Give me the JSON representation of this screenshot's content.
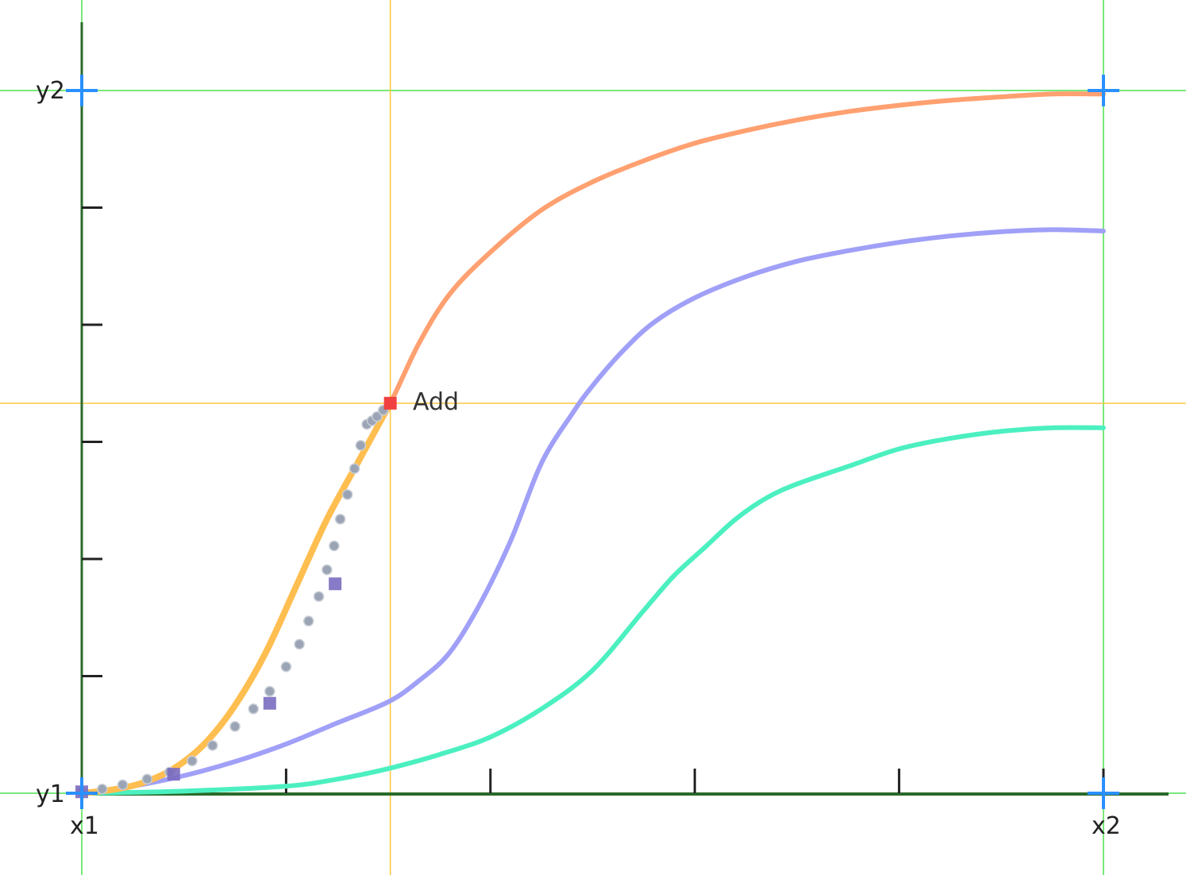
{
  "chart_data": {
    "type": "line",
    "axis_labels": {
      "x_start": "x1",
      "x_end": "x2",
      "y_start": "y1",
      "y_end": "y2"
    },
    "xlim": [
      0,
      1
    ],
    "ylim": [
      0,
      1
    ],
    "x_tick_count": 5,
    "y_tick_count": 6,
    "crosshair": {
      "x": 0.302,
      "y": 0.555
    },
    "add_point": {
      "x": 0.302,
      "y": 0.555,
      "label": "Add"
    },
    "series": [
      {
        "color": "#ffa070",
        "x": [
          0,
          0.03,
          0.06,
          0.09,
          0.12,
          0.15,
          0.18,
          0.21,
          0.24,
          0.27,
          0.302,
          0.33,
          0.36,
          0.4,
          0.45,
          0.5,
          0.55,
          0.6,
          0.65,
          0.7,
          0.75,
          0.8,
          0.85,
          0.9,
          0.95,
          1.0
        ],
        "y": [
          0,
          0.005,
          0.015,
          0.035,
          0.07,
          0.125,
          0.2,
          0.295,
          0.39,
          0.47,
          0.555,
          0.64,
          0.71,
          0.77,
          0.83,
          0.87,
          0.9,
          0.925,
          0.943,
          0.958,
          0.97,
          0.979,
          0.986,
          0.991,
          0.995,
          0.995
        ]
      },
      {
        "color": "#a0a0f8",
        "x": [
          0,
          0.05,
          0.1,
          0.15,
          0.2,
          0.25,
          0.3,
          0.33,
          0.36,
          0.39,
          0.42,
          0.45,
          0.48,
          0.5,
          0.53,
          0.56,
          0.6,
          0.65,
          0.7,
          0.75,
          0.8,
          0.85,
          0.9,
          0.95,
          1.0
        ],
        "y": [
          0,
          0.01,
          0.025,
          0.045,
          0.07,
          0.1,
          0.13,
          0.16,
          0.2,
          0.27,
          0.36,
          0.47,
          0.54,
          0.58,
          0.63,
          0.67,
          0.705,
          0.735,
          0.757,
          0.772,
          0.784,
          0.793,
          0.799,
          0.802,
          0.8
        ]
      },
      {
        "color": "#4cf0c0",
        "x": [
          0,
          0.1,
          0.2,
          0.25,
          0.3,
          0.35,
          0.4,
          0.45,
          0.5,
          0.55,
          0.58,
          0.61,
          0.64,
          0.67,
          0.7,
          0.75,
          0.8,
          0.85,
          0.9,
          0.95,
          1.0
        ],
        "y": [
          0,
          0.003,
          0.01,
          0.02,
          0.035,
          0.055,
          0.08,
          0.12,
          0.175,
          0.26,
          0.31,
          0.35,
          0.39,
          0.42,
          0.44,
          0.465,
          0.49,
          0.505,
          0.515,
          0.52,
          0.52
        ]
      }
    ],
    "dotted_overlay": {
      "color": "#9aa4b4",
      "x": [
        0.0,
        0.02,
        0.04,
        0.064,
        0.086,
        0.108,
        0.128,
        0.15,
        0.168,
        0.184,
        0.2,
        0.213,
        0.222,
        0.232,
        0.24,
        0.247,
        0.253,
        0.26,
        0.267,
        0.273,
        0.279,
        0.284,
        0.289,
        0.295
      ],
      "y": [
        0.002,
        0.006,
        0.012,
        0.02,
        0.03,
        0.046,
        0.068,
        0.095,
        0.12,
        0.145,
        0.18,
        0.212,
        0.245,
        0.28,
        0.318,
        0.352,
        0.39,
        0.425,
        0.462,
        0.495,
        0.525,
        0.53,
        0.536,
        0.545
      ]
    },
    "square_markers": {
      "color": "#7a6cc0",
      "x": [
        0.0,
        0.09,
        0.184,
        0.248
      ],
      "y": [
        0.002,
        0.027,
        0.128,
        0.298
      ]
    },
    "corner_crosses": [
      {
        "x": 0,
        "y": 1
      },
      {
        "x": 1,
        "y": 1
      },
      {
        "x": 0,
        "y": 0
      },
      {
        "x": 1,
        "y": 0
      }
    ]
  }
}
